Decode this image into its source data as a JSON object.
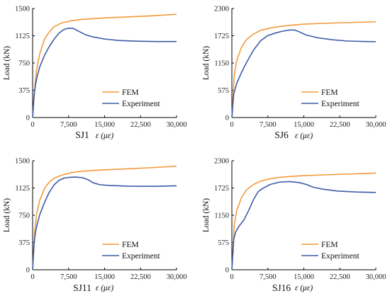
{
  "colors": {
    "fem": "#F39A3A",
    "experiment": "#3E5BA9",
    "axis": "#000000"
  },
  "chart_data": [
    {
      "type": "line",
      "caption": "SJ1",
      "xlabel": "ε (με)",
      "ylabel": "Load (kN)",
      "xlim": [
        0,
        30000
      ],
      "ylim": [
        0,
        1500
      ],
      "xticks": [
        "0",
        "7,500",
        "15,000",
        "22,500",
        "30,000"
      ],
      "yticks": [
        "0",
        "375",
        "750",
        "1125",
        "1500"
      ],
      "legend_position": "lower-right",
      "series": [
        {
          "name": "FEM",
          "x": [
            0,
            400,
            800,
            1500,
            2500,
            3500,
            4500,
            6000,
            8000,
            10000,
            15000,
            20000,
            25000,
            30000
          ],
          "y": [
            0,
            380,
            650,
            880,
            1080,
            1180,
            1250,
            1300,
            1330,
            1350,
            1370,
            1385,
            1400,
            1420
          ]
        },
        {
          "name": "Experiment",
          "x": [
            0,
            300,
            600,
            1000,
            1500,
            2500,
            3500,
            4500,
            5500,
            6500,
            7500,
            8500,
            9500,
            11000,
            12500,
            15000,
            18000,
            22000,
            26000,
            30000
          ],
          "y": [
            0,
            300,
            450,
            580,
            700,
            860,
            980,
            1080,
            1160,
            1210,
            1230,
            1225,
            1190,
            1140,
            1110,
            1080,
            1060,
            1050,
            1045,
            1045
          ]
        }
      ]
    },
    {
      "type": "line",
      "caption": "SJ6",
      "xlabel": "ε (με)",
      "ylabel": "Load (kN)",
      "xlim": [
        0,
        30000
      ],
      "ylim": [
        0,
        2300
      ],
      "xticks": [
        "0",
        "7,500",
        "15,000",
        "22,500",
        "30,000"
      ],
      "yticks": [
        "0",
        "575",
        "1150",
        "1725",
        "2300"
      ],
      "legend_position": "lower-right",
      "series": [
        {
          "name": "FEM",
          "x": [
            0,
            500,
            1000,
            2000,
            3000,
            4500,
            6000,
            8000,
            10000,
            12500,
            15000,
            20000,
            25000,
            30000
          ],
          "y": [
            0,
            900,
            1200,
            1480,
            1640,
            1760,
            1840,
            1890,
            1920,
            1950,
            1970,
            1990,
            2005,
            2020
          ]
        },
        {
          "name": "Experiment",
          "x": [
            0,
            400,
            1000,
            2000,
            3000,
            4500,
            6000,
            7500,
            9000,
            10500,
            12000,
            13000,
            14000,
            15500,
            18000,
            21000,
            24000,
            27000,
            30000
          ],
          "y": [
            0,
            500,
            720,
            950,
            1150,
            1420,
            1620,
            1730,
            1780,
            1820,
            1845,
            1848,
            1810,
            1740,
            1680,
            1640,
            1615,
            1605,
            1600
          ]
        }
      ]
    },
    {
      "type": "line",
      "caption": "SJ11",
      "xlabel": "ε (με)",
      "ylabel": "Load (kN)",
      "xlim": [
        0,
        30000
      ],
      "ylim": [
        0,
        1500
      ],
      "xticks": [
        "0",
        "7,500",
        "15,000",
        "22,500",
        "30,000"
      ],
      "yticks": [
        "0",
        "375",
        "750",
        "1125",
        "1500"
      ],
      "legend_position": "lower-right",
      "series": [
        {
          "name": "FEM",
          "x": [
            0,
            400,
            800,
            1500,
            2500,
            3500,
            4500,
            6000,
            8000,
            10000,
            15000,
            20000,
            25000,
            30000
          ],
          "y": [
            0,
            500,
            760,
            960,
            1120,
            1210,
            1260,
            1300,
            1335,
            1355,
            1375,
            1390,
            1405,
            1425
          ]
        },
        {
          "name": "Experiment",
          "x": [
            0,
            300,
            600,
            1000,
            1500,
            2500,
            3500,
            4500,
            5500,
            6500,
            7500,
            9000,
            10500,
            11500,
            12500,
            14000,
            16000,
            20000,
            25000,
            30000
          ],
          "y": [
            0,
            350,
            520,
            640,
            760,
            930,
            1070,
            1170,
            1230,
            1260,
            1270,
            1275,
            1265,
            1240,
            1200,
            1170,
            1160,
            1150,
            1148,
            1155
          ]
        }
      ]
    },
    {
      "type": "line",
      "caption": "SJ16",
      "xlabel": "ε (με)",
      "ylabel": "Load (kN)",
      "xlim": [
        0,
        30000
      ],
      "ylim": [
        0,
        2300
      ],
      "xticks": [
        "0",
        "7,500",
        "15,000",
        "22,500",
        "30,000"
      ],
      "yticks": [
        "0",
        "575",
        "1150",
        "1725",
        "2300"
      ],
      "legend_position": "lower-right",
      "series": [
        {
          "name": "FEM",
          "x": [
            0,
            500,
            1000,
            2000,
            3000,
            4500,
            6000,
            8000,
            10000,
            12500,
            15000,
            20000,
            25000,
            30000
          ],
          "y": [
            0,
            950,
            1250,
            1520,
            1680,
            1800,
            1870,
            1920,
            1950,
            1970,
            1985,
            2005,
            2020,
            2040
          ]
        },
        {
          "name": "Experiment",
          "x": [
            0,
            400,
            800,
            1500,
            2500,
            3500,
            4500,
            5500,
            6500,
            8000,
            10000,
            12000,
            14000,
            15500,
            17000,
            19000,
            22000,
            26000,
            30000
          ],
          "y": [
            0,
            650,
            800,
            920,
            1050,
            1250,
            1480,
            1650,
            1720,
            1800,
            1850,
            1860,
            1840,
            1800,
            1740,
            1700,
            1660,
            1640,
            1630
          ]
        }
      ]
    }
  ]
}
